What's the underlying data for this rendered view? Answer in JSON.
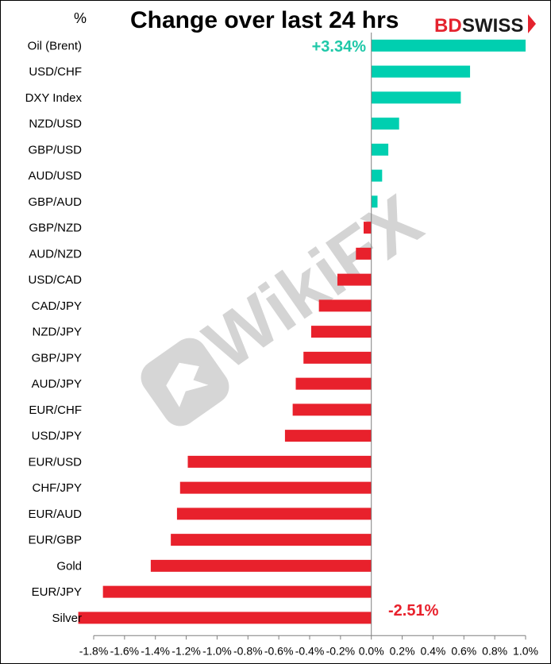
{
  "chart_data": {
    "type": "bar",
    "orientation": "horizontal",
    "title": "Change over last 24 hrs",
    "unit_label": "%",
    "categories": [
      "Oil (Brent)",
      "USD/CHF",
      "DXY Index",
      "NZD/USD",
      "GBP/USD",
      "AUD/USD",
      "GBP/AUD",
      "GBP/NZD",
      "AUD/NZD",
      "USD/CAD",
      "CAD/JPY",
      "NZD/JPY",
      "GBP/JPY",
      "AUD/JPY",
      "EUR/CHF",
      "USD/JPY",
      "EUR/USD",
      "CHF/JPY",
      "EUR/AUD",
      "EUR/GBP",
      "Gold",
      "EUR/JPY",
      "Silver"
    ],
    "values": [
      1.0,
      0.64,
      0.58,
      0.18,
      0.11,
      0.07,
      0.04,
      -0.05,
      -0.1,
      -0.22,
      -0.34,
      -0.39,
      -0.44,
      -0.49,
      -0.51,
      -0.56,
      -1.19,
      -1.24,
      -1.26,
      -1.3,
      -1.43,
      -1.74,
      -1.9
    ],
    "xlim": [
      -1.8,
      1.0
    ],
    "xticks": [
      "-1.8%",
      "-1.6%",
      "-1.4%",
      "-1.2%",
      "-1.0%",
      "-0.8%",
      "-0.6%",
      "-0.4%",
      "-0.2%",
      "0.0%",
      "0.2%",
      "0.4%",
      "0.6%",
      "0.8%",
      "1.0%"
    ],
    "annotations": {
      "top": "+3.34%",
      "bottom": "-2.51%"
    },
    "colors": {
      "positive": "#00cfb0",
      "negative": "#e8212c",
      "annot_positive": "#1fc8a8",
      "annot_negative": "#e8212c"
    },
    "grid": false,
    "legend": "none"
  },
  "branding": {
    "logo_part1": "BD",
    "logo_part2": "SWISS",
    "watermark": "WikiFX"
  }
}
